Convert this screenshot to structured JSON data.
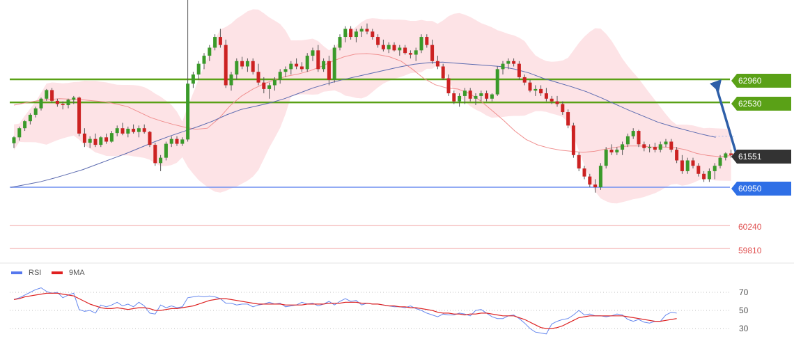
{
  "chart_data": [
    {
      "type": "candlestick",
      "title": "",
      "xlabel": "",
      "ylabel": "",
      "ylim": [
        59700,
        63900
      ],
      "grid": false,
      "overlays": [
        "bollinger-bands",
        "moving-average-fast",
        "moving-average-slow"
      ],
      "levels": [
        {
          "label": "62960",
          "value": 62960,
          "kind": "resistance",
          "color": "#5aa117"
        },
        {
          "label": "62530",
          "value": 62530,
          "kind": "resistance",
          "color": "#5aa117"
        },
        {
          "label": "61551",
          "value": 61551,
          "kind": "last-price",
          "color": "#333333"
        },
        {
          "label": "60950",
          "value": 60950,
          "kind": "support",
          "color": "#2f6fe6"
        },
        {
          "label": "60240",
          "value": 60240,
          "kind": "support",
          "color": "#e05050"
        },
        {
          "label": "59810",
          "value": 59810,
          "kind": "support",
          "color": "#e05050"
        }
      ],
      "forecast_arrow": {
        "from": 61551,
        "to": 62960,
        "direction": "up",
        "color": "#2e5fa8"
      },
      "candles": [
        [
          61770,
          61900,
          61680,
          61880
        ],
        [
          61880,
          62080,
          61820,
          62050
        ],
        [
          62050,
          62200,
          62000,
          62180
        ],
        [
          62180,
          62330,
          62120,
          62300
        ],
        [
          62300,
          62450,
          62250,
          62420
        ],
        [
          62420,
          62620,
          62380,
          62600
        ],
        [
          62600,
          62780,
          62560,
          62760
        ],
        [
          62760,
          62800,
          62520,
          62560
        ],
        [
          62560,
          62600,
          62450,
          62500
        ],
        [
          62500,
          62550,
          62400,
          62480
        ],
        [
          62480,
          62600,
          62420,
          62580
        ],
        [
          62580,
          62650,
          62500,
          62620
        ],
        [
          62620,
          62640,
          61900,
          61950
        ],
        [
          61950,
          62050,
          61700,
          61780
        ],
        [
          61780,
          61900,
          61680,
          61850
        ],
        [
          61850,
          61950,
          61700,
          61740
        ],
        [
          61740,
          61900,
          61700,
          61880
        ],
        [
          61880,
          61950,
          61760,
          61800
        ],
        [
          61800,
          62000,
          61780,
          61960
        ],
        [
          61960,
          62100,
          61900,
          62050
        ],
        [
          62050,
          62150,
          61920,
          61950
        ],
        [
          61950,
          62080,
          61880,
          62040
        ],
        [
          62040,
          62120,
          61950,
          61980
        ],
        [
          61980,
          62100,
          61880,
          62050
        ],
        [
          62050,
          62120,
          61950,
          61980
        ],
        [
          61980,
          62000,
          61700,
          61740
        ],
        [
          61740,
          61780,
          61350,
          61400
        ],
        [
          61400,
          61550,
          61250,
          61500
        ],
        [
          61500,
          61800,
          61450,
          61760
        ],
        [
          61760,
          61900,
          61700,
          61850
        ],
        [
          61850,
          61900,
          61720,
          61760
        ],
        [
          61760,
          61880,
          61720,
          61840
        ],
        [
          61840,
          63000,
          61800,
          62880
        ],
        [
          62880,
          63100,
          62800,
          63050
        ],
        [
          63050,
          63300,
          62950,
          63250
        ],
        [
          63250,
          63450,
          63150,
          63400
        ],
        [
          63400,
          63600,
          63300,
          63550
        ],
        [
          63550,
          63800,
          63500,
          63750
        ],
        [
          63750,
          63900,
          63550,
          63600
        ],
        [
          63600,
          63700,
          62800,
          62850
        ],
        [
          62850,
          63100,
          62750,
          63050
        ],
        [
          63050,
          63350,
          62950,
          63300
        ],
        [
          63300,
          63380,
          63150,
          63200
        ],
        [
          63200,
          63350,
          63100,
          63300
        ],
        [
          63300,
          63350,
          63050,
          63100
        ],
        [
          63100,
          63250,
          62850,
          62900
        ],
        [
          62900,
          63000,
          62700,
          62780
        ],
        [
          62780,
          62900,
          62600,
          62850
        ],
        [
          62850,
          63000,
          62750,
          62950
        ],
        [
          62950,
          63150,
          62880,
          63100
        ],
        [
          63100,
          63200,
          63000,
          63150
        ],
        [
          63150,
          63300,
          63050,
          63250
        ],
        [
          63250,
          63350,
          63150,
          63200
        ],
        [
          63200,
          63280,
          63100,
          63150
        ],
        [
          63150,
          63450,
          63100,
          63400
        ],
        [
          63400,
          63550,
          63300,
          63500
        ],
        [
          63500,
          63600,
          63100,
          63150
        ],
        [
          63150,
          63350,
          63100,
          63300
        ],
        [
          63300,
          63400,
          62850,
          62950
        ],
        [
          62950,
          63600,
          62900,
          63550
        ],
        [
          63550,
          63800,
          63500,
          63750
        ],
        [
          63750,
          63950,
          63650,
          63900
        ],
        [
          63900,
          63950,
          63700,
          63750
        ],
        [
          63750,
          63900,
          63650,
          63850
        ],
        [
          63850,
          63950,
          63750,
          63900
        ],
        [
          63900,
          64000,
          63800,
          63850
        ],
        [
          63850,
          63900,
          63700,
          63750
        ],
        [
          63750,
          63800,
          63550,
          63600
        ],
        [
          63600,
          63700,
          63480,
          63520
        ],
        [
          63520,
          63650,
          63450,
          63600
        ],
        [
          63600,
          63650,
          63480,
          63500
        ],
        [
          63500,
          63600,
          63400,
          63550
        ],
        [
          63550,
          63600,
          63420,
          63450
        ],
        [
          63450,
          63500,
          63350,
          63420
        ],
        [
          63420,
          63550,
          63300,
          63500
        ],
        [
          63500,
          63800,
          63450,
          63750
        ],
        [
          63750,
          63800,
          63550,
          63600
        ],
        [
          63600,
          63700,
          63250,
          63300
        ],
        [
          63300,
          63400,
          63150,
          63200
        ],
        [
          63200,
          63250,
          62950,
          62980
        ],
        [
          62980,
          63050,
          62650,
          62700
        ],
        [
          62700,
          62750,
          62500,
          62550
        ],
        [
          62550,
          62700,
          62450,
          62650
        ],
        [
          62650,
          62800,
          62500,
          62750
        ],
        [
          62750,
          62800,
          62550,
          62600
        ],
        [
          62600,
          62700,
          62480,
          62650
        ],
        [
          62650,
          62750,
          62550,
          62700
        ],
        [
          62700,
          62750,
          62550,
          62600
        ],
        [
          62600,
          62700,
          62550,
          62680
        ],
        [
          62680,
          63200,
          62650,
          63150
        ],
        [
          63150,
          63300,
          63050,
          63250
        ],
        [
          63250,
          63350,
          63150,
          63300
        ],
        [
          63300,
          63350,
          63200,
          63250
        ],
        [
          63250,
          63300,
          62950,
          63000
        ],
        [
          63000,
          63050,
          62850,
          62900
        ],
        [
          62900,
          62950,
          62720,
          62750
        ],
        [
          62750,
          62850,
          62650,
          62780
        ],
        [
          62780,
          62850,
          62650,
          62700
        ],
        [
          62700,
          62800,
          62550,
          62600
        ],
        [
          62600,
          62650,
          62500,
          62550
        ],
        [
          62550,
          62650,
          62450,
          62500
        ],
        [
          62500,
          62550,
          62300,
          62350
        ],
        [
          62350,
          62400,
          62050,
          62100
        ],
        [
          62100,
          62150,
          61500,
          61550
        ],
        [
          61550,
          61600,
          61250,
          61300
        ],
        [
          61300,
          61350,
          61100,
          61150
        ],
        [
          61150,
          61200,
          60950,
          61000
        ],
        [
          61000,
          61100,
          60850,
          60950
        ],
        [
          60950,
          61400,
          60900,
          61350
        ],
        [
          61350,
          61700,
          61300,
          61650
        ],
        [
          61650,
          61750,
          61550,
          61600
        ],
        [
          61600,
          61700,
          61550,
          61650
        ],
        [
          61650,
          61800,
          61550,
          61750
        ],
        [
          61750,
          61950,
          61700,
          61900
        ],
        [
          61900,
          62050,
          61850,
          62000
        ],
        [
          62000,
          62020,
          61700,
          61750
        ],
        [
          61750,
          61800,
          61620,
          61680
        ],
        [
          61680,
          61750,
          61600,
          61700
        ],
        [
          61700,
          61780,
          61600,
          61650
        ],
        [
          61650,
          61800,
          61600,
          61750
        ],
        [
          61750,
          61850,
          61700,
          61800
        ],
        [
          61800,
          61850,
          61600,
          61650
        ],
        [
          61650,
          61700,
          61400,
          61450
        ],
        [
          61450,
          61550,
          61200,
          61250
        ],
        [
          61250,
          61500,
          61200,
          61450
        ],
        [
          61450,
          61500,
          61300,
          61350
        ],
        [
          61350,
          61400,
          61150,
          61200
        ],
        [
          61200,
          61250,
          61050,
          61100
        ],
        [
          61100,
          61300,
          61050,
          61250
        ],
        [
          61250,
          61400,
          61100,
          61350
        ],
        [
          61350,
          61550,
          61300,
          61500
        ],
        [
          61500,
          61600,
          61450,
          61580
        ],
        [
          61580,
          61650,
          61500,
          61551
        ]
      ],
      "reference": {
        "ma_fast": [
          62480,
          62520,
          62560,
          62580,
          62600,
          62590,
          62580,
          62560,
          62540,
          62500,
          62450,
          62350,
          62250,
          62180,
          62120,
          62070,
          62030,
          62050,
          62230,
          62470,
          62650,
          62780,
          62880,
          62960,
          63020,
          63060,
          63120,
          63200,
          63300,
          63380,
          63430,
          63440,
          63420,
          63380,
          63300,
          63150,
          62980,
          62860,
          62800,
          62780,
          62700,
          62560,
          62380,
          62200,
          62000,
          61840,
          61740,
          61680,
          61640,
          61620,
          61600,
          61620,
          61660,
          61700,
          61720,
          61720,
          61700,
          61700,
          61690,
          61650,
          61580,
          61540,
          61520,
          61540
        ],
        "ma_slow": [
          60950,
          61000,
          61050,
          61120,
          61200,
          61280,
          61380,
          61480,
          61580,
          61690,
          61800,
          61900,
          61990,
          62080,
          62180,
          62300,
          62400,
          62460,
          62520,
          62600,
          62700,
          62800,
          62880,
          62950,
          63010,
          63070,
          63130,
          63190,
          63240,
          63270,
          63280,
          63260,
          63240,
          63220,
          63200,
          63150,
          63080,
          62980,
          62900,
          62820,
          62730,
          62620,
          62500,
          62380,
          62270,
          62160,
          62080,
          62010,
          61940,
          61880
        ]
      }
    },
    {
      "type": "line",
      "title": "",
      "xlabel": "",
      "ylabel": "",
      "ylim": [
        22,
        82
      ],
      "yticks": [
        70,
        50,
        30
      ],
      "grid": true,
      "legend": {
        "position": "top-left",
        "entries": [
          {
            "name": "RSI",
            "color": "#5577ee"
          },
          {
            "name": "9MA",
            "color": "#e02020"
          }
        ]
      },
      "series": [
        {
          "name": "RSI",
          "color": "#6688ee",
          "values": [
            62,
            64,
            67,
            70,
            73,
            75,
            71,
            69,
            70,
            64,
            67,
            69,
            51,
            49,
            50,
            47,
            56,
            54,
            56,
            59,
            55,
            57,
            54,
            59,
            55,
            47,
            46,
            56,
            53,
            55,
            53,
            54,
            64,
            65,
            66,
            65,
            66,
            65,
            63,
            58,
            58,
            56,
            57,
            57,
            54,
            56,
            57,
            59,
            57,
            58,
            54,
            55,
            56,
            59,
            57,
            58,
            55,
            57,
            60,
            56,
            60,
            63,
            60,
            61,
            56,
            58,
            57,
            57,
            56,
            55,
            54,
            54,
            53,
            55,
            52,
            50,
            47,
            45,
            43,
            46,
            45,
            45,
            47,
            46,
            44,
            50,
            51,
            47,
            43,
            41,
            41,
            44,
            45,
            41,
            36,
            30,
            26,
            25,
            24,
            35,
            38,
            40,
            41,
            45,
            50,
            45,
            46,
            44,
            44,
            43,
            44,
            46,
            45,
            40,
            38,
            40,
            37,
            36,
            38,
            38,
            45,
            48,
            47
          ]
        },
        {
          "name": "9MA",
          "color": "#dd2222",
          "values": [
            62,
            63,
            65,
            66,
            67,
            68,
            69,
            69,
            69,
            68,
            67,
            66,
            63,
            60,
            57,
            55,
            53,
            52,
            52,
            53,
            52,
            51,
            52,
            53,
            53,
            52,
            50,
            50,
            51,
            52,
            52,
            53,
            54,
            55,
            57,
            59,
            61,
            62,
            63,
            63,
            62,
            61,
            60,
            59,
            58,
            57,
            57,
            57,
            57,
            57,
            56,
            56,
            56,
            56,
            57,
            57,
            57,
            57,
            58,
            58,
            58,
            59,
            59,
            59,
            58,
            58,
            57,
            57,
            56,
            55,
            55,
            54,
            54,
            53,
            53,
            52,
            51,
            50,
            48,
            47,
            47,
            46,
            46,
            45,
            46,
            46,
            47,
            47,
            46,
            45,
            44,
            44,
            44,
            42,
            40,
            37,
            34,
            31,
            30,
            30,
            31,
            33,
            36,
            39,
            42,
            43,
            44,
            44,
            44,
            44,
            44,
            44,
            44,
            43,
            42,
            41,
            40,
            39,
            38,
            38,
            39,
            40,
            41
          ]
        }
      ]
    }
  ]
}
